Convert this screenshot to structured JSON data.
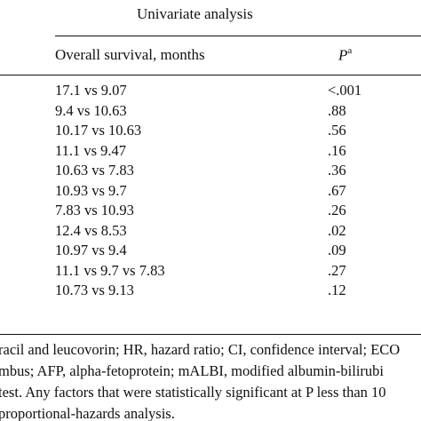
{
  "table": {
    "group_header": "Univariate analysis",
    "columns": {
      "survival": "Overall survival, months",
      "p_label": "P",
      "p_superscript": "a"
    },
    "rows": [
      {
        "survival": "17.1 vs 9.07",
        "p": "<.001"
      },
      {
        "survival": "9.4 vs 10.63",
        "p": ".88"
      },
      {
        "survival": "10.17 vs 10.63",
        "p": ".56"
      },
      {
        "survival": "11.1 vs 9.47",
        "p": ".16"
      },
      {
        "survival": "10.63 vs 7.83",
        "p": ".36"
      },
      {
        "survival": "10.93 vs 9.7",
        "p": ".67"
      },
      {
        "survival": "7.83 vs 10.93",
        "p": ".26"
      },
      {
        "survival": "12.4 vs 8.53",
        "p": ".02"
      },
      {
        "survival": "10.97 vs 9.4",
        "p": ".09"
      },
      {
        "survival": "11.1 vs 9.7 vs 7.83",
        "p": ".27"
      },
      {
        "survival": "10.73 vs 9.13",
        "p": ".12"
      }
    ]
  },
  "footnotes": {
    "line1": "racil and leucovorin; HR, hazard ratio; CI, confidence interval; ECO",
    "line2": "mbus; AFP, alpha-fetoprotein; mALBI, modified albumin-bilirubi",
    "line3": " test. Any factors that were statistically significant at P less than 10",
    "line4": "proportional-hazards analysis."
  }
}
